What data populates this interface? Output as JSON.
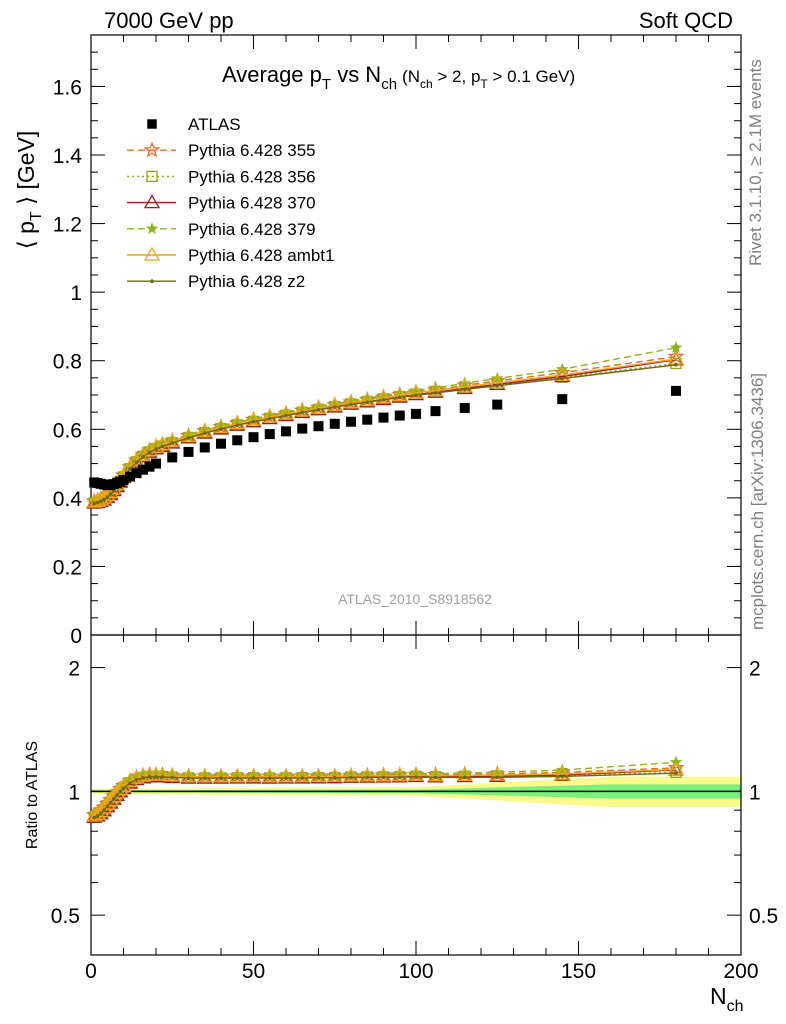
{
  "header": {
    "left": "7000 GeV pp",
    "right": "Soft QCD"
  },
  "side_labels": {
    "rivet": "Rivet 3.1.10, ≥ 2.1M events",
    "mcplots": "mcplots.cern.ch [arXiv:1306.3436]"
  },
  "watermark": "ATLAS_2010_S8918562",
  "colors": {
    "ATLAS": "#000000",
    "p355": "#ee6a24",
    "p356": "#8ea61c",
    "p370": "#9b1c1c",
    "p379": "#8cb41f",
    "ambt1": "#f0a418",
    "z2": "#6e6a14",
    "band_inner": "#7cf07c",
    "band_outer": "#fafa8c"
  },
  "chart_data": [
    {
      "type": "scatter",
      "panel": "main",
      "title": "Average p_T vs N_ch (N_ch > 2, p_T > 0.1 GeV)",
      "title_parts": {
        "main": "Average p",
        "sub1": "T",
        "vs": " vs N",
        "sub2": "ch",
        "cond": "(N",
        "cond_sub1": "ch",
        "cond_mid": " > 2, p",
        "cond_sub2": "T",
        "cond_end": " > 0.1 GeV)"
      },
      "ylabel": "⟨ p_T ⟩ [GeV]",
      "ylabel_parts": {
        "pre": "⟨ p",
        "sub": "T",
        "post": " ⟩ [GeV]"
      },
      "xlim": [
        0,
        200
      ],
      "ylim": [
        0,
        1.75
      ],
      "yticks": [
        0,
        0.2,
        0.4,
        0.6,
        0.8,
        1,
        1.2,
        1.4,
        1.6
      ],
      "ytick_labels": [
        "0",
        "0.2",
        "0.4",
        "0.6",
        "0.8",
        "1",
        "1.2",
        "1.4",
        "1.6"
      ],
      "legend_position": "top-left",
      "legend": [
        "ATLAS",
        "Pythia 6.428 355",
        "Pythia 6.428 356",
        "Pythia 6.428 370",
        "Pythia 6.428 379",
        "Pythia 6.428 ambt1",
        "Pythia 6.428 z2"
      ],
      "data": {
        "name": "ATLAS",
        "x": [
          1,
          2,
          3,
          4,
          5,
          6,
          7,
          8,
          9,
          10,
          12,
          14,
          16,
          18,
          20,
          25,
          30,
          35,
          40,
          45,
          50,
          55,
          60,
          65,
          70,
          75,
          80,
          85,
          90,
          95,
          100,
          106,
          115,
          125,
          145,
          180
        ],
        "y": [
          0.445,
          0.443,
          0.441,
          0.439,
          0.437,
          0.438,
          0.44,
          0.443,
          0.447,
          0.452,
          0.462,
          0.472,
          0.482,
          0.491,
          0.5,
          0.518,
          0.534,
          0.547,
          0.558,
          0.568,
          0.577,
          0.586,
          0.594,
          0.602,
          0.609,
          0.616,
          0.622,
          0.628,
          0.634,
          0.64,
          0.645,
          0.653,
          0.662,
          0.672,
          0.688,
          0.712
        ]
      },
      "mc_x": [
        1,
        2,
        3,
        4,
        5,
        6,
        7,
        8,
        9,
        10,
        12,
        14,
        16,
        18,
        20,
        22,
        25,
        30,
        35,
        40,
        45,
        50,
        55,
        60,
        65,
        70,
        75,
        80,
        85,
        90,
        95,
        100,
        106,
        115,
        125,
        145,
        180
      ],
      "mc_series": [
        {
          "name": "Pythia 6.428 355",
          "key": "p355",
          "marker": "star",
          "dash": "7,4",
          "y": [
            0.39,
            0.392,
            0.396,
            0.401,
            0.408,
            0.417,
            0.428,
            0.44,
            0.453,
            0.466,
            0.49,
            0.51,
            0.526,
            0.539,
            0.549,
            0.556,
            0.566,
            0.581,
            0.595,
            0.607,
            0.618,
            0.628,
            0.637,
            0.646,
            0.655,
            0.663,
            0.671,
            0.679,
            0.686,
            0.694,
            0.701,
            0.708,
            0.716,
            0.728,
            0.741,
            0.765,
            0.812
          ]
        },
        {
          "name": "Pythia 6.428 356",
          "key": "p356",
          "marker": "square",
          "dash": "2,3",
          "y": [
            0.385,
            0.387,
            0.391,
            0.396,
            0.403,
            0.412,
            0.423,
            0.435,
            0.448,
            0.461,
            0.485,
            0.505,
            0.521,
            0.534,
            0.544,
            0.551,
            0.561,
            0.576,
            0.59,
            0.602,
            0.613,
            0.623,
            0.632,
            0.641,
            0.65,
            0.658,
            0.666,
            0.674,
            0.681,
            0.688,
            0.695,
            0.702,
            0.709,
            0.72,
            0.731,
            0.752,
            0.792
          ]
        },
        {
          "name": "Pythia 6.428 370",
          "key": "p370",
          "marker": "triangle",
          "dash": "",
          "y": [
            0.385,
            0.386,
            0.389,
            0.394,
            0.401,
            0.41,
            0.421,
            0.433,
            0.446,
            0.459,
            0.484,
            0.504,
            0.52,
            0.533,
            0.543,
            0.55,
            0.56,
            0.575,
            0.589,
            0.601,
            0.612,
            0.622,
            0.631,
            0.64,
            0.649,
            0.657,
            0.665,
            0.673,
            0.68,
            0.687,
            0.694,
            0.701,
            0.708,
            0.719,
            0.731,
            0.754,
            0.803
          ]
        },
        {
          "name": "Pythia 6.428 379",
          "key": "p379",
          "marker": "smallstar",
          "dash": "7,4",
          "y": [
            0.392,
            0.394,
            0.398,
            0.404,
            0.411,
            0.42,
            0.431,
            0.443,
            0.456,
            0.469,
            0.493,
            0.513,
            0.529,
            0.542,
            0.552,
            0.559,
            0.569,
            0.584,
            0.598,
            0.61,
            0.621,
            0.631,
            0.641,
            0.65,
            0.659,
            0.667,
            0.675,
            0.683,
            0.691,
            0.699,
            0.706,
            0.713,
            0.721,
            0.734,
            0.748,
            0.775,
            0.838
          ]
        },
        {
          "name": "Pythia 6.428 ambt1",
          "key": "ambt1",
          "marker": "triangle",
          "dash": "",
          "y": [
            0.388,
            0.39,
            0.394,
            0.4,
            0.407,
            0.416,
            0.427,
            0.439,
            0.452,
            0.465,
            0.489,
            0.509,
            0.525,
            0.538,
            0.548,
            0.555,
            0.565,
            0.58,
            0.594,
            0.606,
            0.617,
            0.627,
            0.636,
            0.645,
            0.654,
            0.662,
            0.67,
            0.678,
            0.685,
            0.692,
            0.699,
            0.706,
            0.713,
            0.724,
            0.736,
            0.758,
            0.805
          ]
        },
        {
          "name": "Pythia 6.428 z2",
          "key": "z2",
          "marker": "dot",
          "dash": "",
          "y": [
            0.384,
            0.386,
            0.39,
            0.395,
            0.402,
            0.411,
            0.422,
            0.434,
            0.447,
            0.46,
            0.484,
            0.504,
            0.52,
            0.533,
            0.543,
            0.55,
            0.56,
            0.575,
            0.589,
            0.601,
            0.612,
            0.622,
            0.631,
            0.64,
            0.649,
            0.657,
            0.665,
            0.672,
            0.679,
            0.686,
            0.693,
            0.699,
            0.706,
            0.716,
            0.727,
            0.748,
            0.788
          ]
        }
      ]
    },
    {
      "type": "line",
      "panel": "ratio",
      "ylabel": "Ratio to ATLAS",
      "xlabel": "N_ch",
      "xlabel_parts": {
        "main": "N",
        "sub": "ch"
      },
      "xlim": [
        0,
        200
      ],
      "ylim": [
        0.4,
        2.4
      ],
      "yscale": "log",
      "yticks": [
        0.5,
        1,
        2
      ],
      "ytick_labels": [
        "0.5",
        "1",
        "2"
      ],
      "xticks": [
        0,
        50,
        100,
        150,
        200
      ],
      "xtick_labels": [
        "0",
        "50",
        "100",
        "150",
        "200"
      ],
      "reference": 1.0,
      "uncertainty_band": {
        "x": [
          0,
          100,
          160,
          200
        ],
        "inner": [
          0.006,
          0.01,
          0.04,
          0.04
        ],
        "outer": [
          0.014,
          0.025,
          0.085,
          0.085
        ]
      }
    }
  ]
}
